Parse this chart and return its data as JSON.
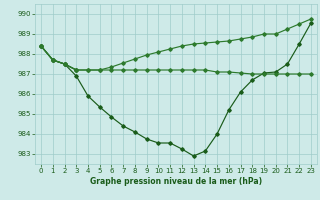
{
  "xlabel": "Graphe pression niveau de la mer (hPa)",
  "xlim": [
    -0.5,
    23.5
  ],
  "ylim": [
    982.5,
    990.5
  ],
  "yticks": [
    983,
    984,
    985,
    986,
    987,
    988,
    989,
    990
  ],
  "xticks": [
    0,
    1,
    2,
    3,
    4,
    5,
    6,
    7,
    8,
    9,
    10,
    11,
    12,
    13,
    14,
    15,
    16,
    17,
    18,
    19,
    20,
    21,
    22,
    23
  ],
  "bg_color": "#ceeae8",
  "grid_color": "#a0ccca",
  "line_color_dark": "#1a5c1a",
  "line_color_mid": "#2d7a2d",
  "line1_x": [
    0,
    1,
    2,
    3,
    4,
    5,
    6,
    7,
    8,
    9,
    10,
    11,
    12,
    13,
    14,
    15,
    16,
    17,
    18,
    19,
    20,
    21,
    22,
    23
  ],
  "line1_y": [
    988.4,
    987.7,
    987.5,
    986.9,
    985.9,
    985.35,
    984.85,
    984.4,
    984.1,
    983.75,
    983.55,
    983.55,
    983.25,
    982.9,
    983.15,
    984.0,
    985.2,
    986.1,
    986.7,
    987.05,
    987.1,
    987.5,
    988.5,
    989.55
  ],
  "line2_x": [
    0,
    1,
    2,
    3
  ],
  "line2_y": [
    988.4,
    987.7,
    987.5,
    987.2
  ],
  "line3_x": [
    0,
    1,
    2,
    3,
    4,
    5,
    6,
    7,
    8,
    9,
    10,
    11,
    12,
    13,
    14,
    15,
    16,
    17,
    18,
    19,
    20,
    21,
    22,
    23
  ],
  "line3_y": [
    988.4,
    987.7,
    987.5,
    987.2,
    987.2,
    987.2,
    987.2,
    987.2,
    987.2,
    987.2,
    987.2,
    987.2,
    987.2,
    987.2,
    987.2,
    987.1,
    987.1,
    987.05,
    987.0,
    987.0,
    987.0,
    987.0,
    987.0,
    987.0
  ],
  "line4_x": [
    0,
    1,
    2,
    3,
    4,
    5,
    6,
    7,
    8,
    9,
    10,
    11,
    12,
    13,
    14,
    15,
    16,
    17,
    18,
    19,
    20,
    21,
    22,
    23
  ],
  "line4_y": [
    988.4,
    987.7,
    987.5,
    987.2,
    987.2,
    987.2,
    987.35,
    987.55,
    987.75,
    987.95,
    988.1,
    988.25,
    988.4,
    988.5,
    988.55,
    988.6,
    988.65,
    988.75,
    988.85,
    989.0,
    989.0,
    989.25,
    989.5,
    989.75
  ]
}
